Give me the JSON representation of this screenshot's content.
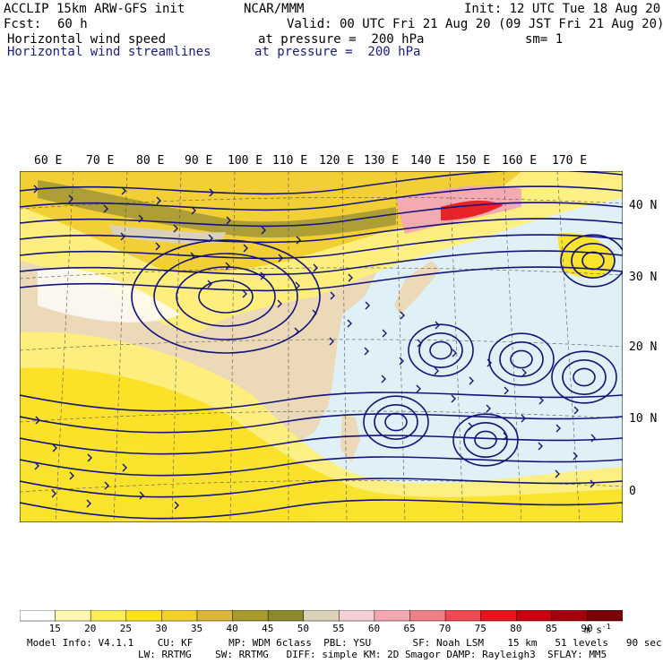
{
  "header": {
    "model": "ACCLIP 15km ARW-GFS init",
    "org": "NCAR/MMM",
    "init": "Init: 12 UTC Tue 18 Aug 20",
    "fcst_label": "Fcst:",
    "fcst_value": "60 h",
    "valid": "Valid: 00 UTC Fri 21 Aug 20 (09 JST Fri 21 Aug 20)",
    "field1": "Horizontal wind speed",
    "field1_level": "at pressure =  200 hPa",
    "sm": "sm= 1",
    "field2": "Horizontal wind streamlines",
    "field2_level": "at pressure =  200 hPa"
  },
  "axes": {
    "lon_labels": [
      "60 E",
      "70 E",
      "80 E",
      "90 E",
      "100 E",
      "110 E",
      "120 E",
      "130 E",
      "140 E",
      "150 E",
      "160 E",
      "170 E"
    ],
    "lat_labels": [
      "40 N",
      "30 N",
      "20 N",
      "10 N",
      "0"
    ]
  },
  "colorbar": {
    "ticks": [
      "15",
      "20",
      "25",
      "30",
      "35",
      "40",
      "45",
      "50",
      "55",
      "60",
      "65",
      "70",
      "75",
      "80",
      "85",
      "90"
    ],
    "unit": "m s",
    "unit_exp": "-1",
    "colors": [
      "#ffffff",
      "#fff8b0",
      "#ffee55",
      "#fde21c",
      "#f2cf2a",
      "#d8b63a",
      "#a89a2c",
      "#8a8a2c",
      "#d9d2b8",
      "#f6d0d8",
      "#f4a7b0",
      "#f07f88",
      "#ee4a52",
      "#e8141c",
      "#c80010",
      "#a2000c",
      "#7a0008"
    ]
  },
  "footer": {
    "line1": "Model Info: V4.1.1    CU: KF      MP: WDM 6class  PBL: YSU       SF: Noah LSM    15 km   51 levels   90 sec",
    "line2": "LW: RRTMG    SW: RRTMG   DIFF: simple KM: 2D Smagor DAMP: Rayleigh3  SFLAY: MM5"
  },
  "map_colors": {
    "ocean": "#dff1f6",
    "land": "#ecd9b8",
    "streamline": "#13137c",
    "border": "#666666"
  }
}
